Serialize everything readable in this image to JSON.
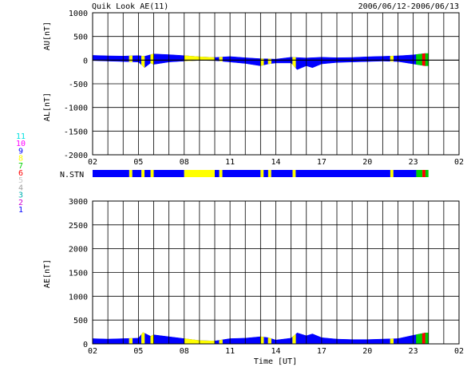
{
  "header": {
    "title": "Quik Look AE(11)",
    "date_range": "2006/06/12-2006/06/13"
  },
  "colors": {
    "station_1": "#0000ff",
    "station_2": "#d000d0",
    "station_3": "#00b0b0",
    "station_4": "#a0a0a0",
    "station_5": "#c8c8c8",
    "station_6": "#ff0000",
    "station_7": "#00d000",
    "station_8": "#ffff00",
    "station_9": "#0000ff",
    "station_10": "#ff00ff",
    "station_11": "#00e0e0"
  },
  "station_legend": [
    {
      "label": "11",
      "color": "#00e0e0"
    },
    {
      "label": "10",
      "color": "#ff00ff"
    },
    {
      "label": "9",
      "color": "#0000ff"
    },
    {
      "label": "8",
      "color": "#ffff00"
    },
    {
      "label": "7",
      "color": "#00d000"
    },
    {
      "label": "6",
      "color": "#ff0000"
    },
    {
      "label": "5",
      "color": "#c8c8c8"
    },
    {
      "label": "4",
      "color": "#a0a0a0"
    },
    {
      "label": "3",
      "color": "#00b0b0"
    },
    {
      "label": "2",
      "color": "#d000d0"
    },
    {
      "label": "1",
      "color": "#0000ff"
    }
  ],
  "chart_data": [
    {
      "type": "area",
      "ylabel_top": "AU[nT]",
      "ylabel_bottom": "AL[nT]",
      "ylim": [
        -2000,
        1000
      ],
      "yticks": [
        "1000",
        "500",
        "0",
        "-500",
        "-1000",
        "-1500",
        "-2000"
      ],
      "xlim": [
        2,
        26
      ],
      "xticks": [
        "02",
        "05",
        "08",
        "11",
        "14",
        "17",
        "20",
        "23",
        "02"
      ],
      "au": [
        [
          2,
          100
        ],
        [
          3,
          90
        ],
        [
          4,
          85
        ],
        [
          5,
          95
        ],
        [
          5.4,
          80
        ],
        [
          6,
          130
        ],
        [
          7,
          115
        ],
        [
          8,
          95
        ],
        [
          9,
          70
        ],
        [
          10,
          55
        ],
        [
          11,
          75
        ],
        [
          12,
          50
        ],
        [
          13,
          30
        ],
        [
          14,
          20
        ],
        [
          15,
          60
        ],
        [
          16,
          45
        ],
        [
          17,
          60
        ],
        [
          18,
          50
        ],
        [
          19,
          55
        ],
        [
          20,
          70
        ],
        [
          21,
          80
        ],
        [
          22,
          90
        ],
        [
          23,
          110
        ],
        [
          23.8,
          140
        ]
      ],
      "al": [
        [
          2,
          -10
        ],
        [
          3,
          -20
        ],
        [
          4,
          -30
        ],
        [
          5,
          -40
        ],
        [
          5.4,
          -160
        ],
        [
          5.8,
          -60
        ],
        [
          6,
          -90
        ],
        [
          7,
          -40
        ],
        [
          8,
          -20
        ],
        [
          9,
          -5
        ],
        [
          10,
          -10
        ],
        [
          11,
          -40
        ],
        [
          12,
          -70
        ],
        [
          13,
          -120
        ],
        [
          13.5,
          -80
        ],
        [
          14,
          -60
        ],
        [
          15,
          -60
        ],
        [
          15.4,
          -200
        ],
        [
          16,
          -120
        ],
        [
          16.4,
          -160
        ],
        [
          17,
          -80
        ],
        [
          18,
          -50
        ],
        [
          19,
          -40
        ],
        [
          20,
          -30
        ],
        [
          21,
          -20
        ],
        [
          22,
          -30
        ],
        [
          23,
          -80
        ],
        [
          23.8,
          -120
        ]
      ]
    },
    {
      "type": "heatmap",
      "label": "N.STN",
      "segments": [
        {
          "start": 2,
          "end": 4.4,
          "station": "9"
        },
        {
          "start": 4.4,
          "end": 4.6,
          "station": "8"
        },
        {
          "start": 4.6,
          "end": 5.2,
          "station": "9"
        },
        {
          "start": 5.2,
          "end": 5.4,
          "station": "8"
        },
        {
          "start": 5.4,
          "end": 5.8,
          "station": "9"
        },
        {
          "start": 5.8,
          "end": 6.0,
          "station": "8"
        },
        {
          "start": 6.0,
          "end": 8.0,
          "station": "9"
        },
        {
          "start": 8.0,
          "end": 10.0,
          "station": "8"
        },
        {
          "start": 10.0,
          "end": 10.3,
          "station": "9"
        },
        {
          "start": 10.3,
          "end": 10.5,
          "station": "8"
        },
        {
          "start": 10.5,
          "end": 13.0,
          "station": "9"
        },
        {
          "start": 13.0,
          "end": 13.2,
          "station": "8"
        },
        {
          "start": 13.2,
          "end": 13.5,
          "station": "9"
        },
        {
          "start": 13.5,
          "end": 13.7,
          "station": "8"
        },
        {
          "start": 13.7,
          "end": 15.1,
          "station": "9"
        },
        {
          "start": 15.1,
          "end": 15.3,
          "station": "8"
        },
        {
          "start": 15.3,
          "end": 21.5,
          "station": "9"
        },
        {
          "start": 21.5,
          "end": 21.7,
          "station": "8"
        },
        {
          "start": 21.7,
          "end": 23.2,
          "station": "9"
        },
        {
          "start": 23.2,
          "end": 23.6,
          "station": "7"
        },
        {
          "start": 23.6,
          "end": 23.8,
          "station": "6"
        },
        {
          "start": 23.8,
          "end": 24.0,
          "station": "7"
        }
      ]
    },
    {
      "type": "area",
      "ylabel": "AE[nT]",
      "xlabel": "Time [UT]",
      "ylim": [
        0,
        3000
      ],
      "yticks": [
        "3000",
        "2500",
        "2000",
        "1500",
        "1000",
        "500",
        "0"
      ],
      "xlim": [
        2,
        26
      ],
      "xticks": [
        "02",
        "05",
        "08",
        "11",
        "14",
        "17",
        "20",
        "23",
        "02"
      ],
      "ae": [
        [
          2,
          110
        ],
        [
          3,
          100
        ],
        [
          4,
          110
        ],
        [
          5,
          120
        ],
        [
          5.3,
          240
        ],
        [
          5.8,
          160
        ],
        [
          6,
          190
        ],
        [
          7,
          150
        ],
        [
          8,
          110
        ],
        [
          9,
          70
        ],
        [
          10,
          60
        ],
        [
          11,
          110
        ],
        [
          12,
          120
        ],
        [
          13,
          150
        ],
        [
          13.5,
          130
        ],
        [
          14,
          80
        ],
        [
          15,
          120
        ],
        [
          15.4,
          230
        ],
        [
          16,
          170
        ],
        [
          16.4,
          210
        ],
        [
          17,
          130
        ],
        [
          18,
          100
        ],
        [
          19,
          90
        ],
        [
          20,
          90
        ],
        [
          21,
          100
        ],
        [
          22,
          110
        ],
        [
          23,
          180
        ],
        [
          23.8,
          230
        ]
      ]
    }
  ]
}
